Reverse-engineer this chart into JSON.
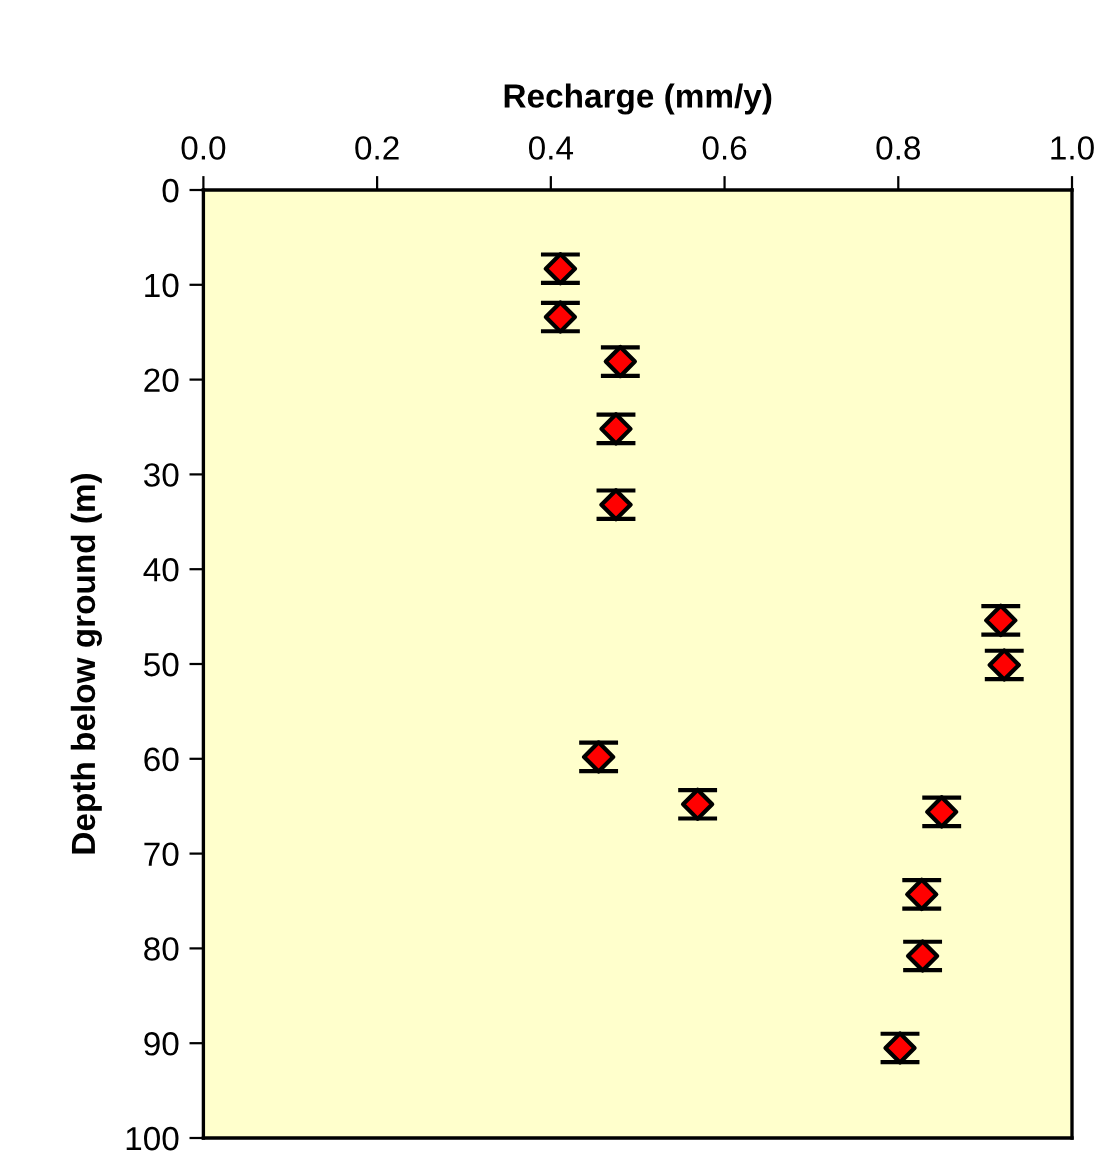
{
  "chart_data": {
    "type": "scatter",
    "xlabel": "Recharge (mm/y)",
    "ylabel": "Depth below ground (m)",
    "x": [
      0.411,
      0.411,
      0.48,
      0.475,
      0.475,
      0.918,
      0.922,
      0.455,
      0.569,
      0.85,
      0.827,
      0.828,
      0.802
    ],
    "series": [
      {
        "color": "#ff0000",
        "values": [
          8.3,
          13.4,
          18.1,
          25.2,
          33.2,
          45.4,
          50.1,
          59.8,
          64.8,
          65.6,
          74.3,
          80.8,
          90.5
        ],
        "errors": [
          1.5,
          1.5,
          1.5,
          1.5,
          1.5,
          1.5,
          1.5,
          1.5,
          1.5,
          1.5,
          1.5,
          1.5,
          1.5
        ]
      }
    ],
    "xlim": [
      0,
      1
    ],
    "xticks": [
      {
        "value": 0,
        "label": "0.0"
      },
      {
        "value": 0.2,
        "label": "0.2"
      },
      {
        "value": 0.4,
        "label": "0.4"
      },
      {
        "value": 0.6,
        "label": "0.6"
      },
      {
        "value": 0.8,
        "label": "0.8"
      },
      {
        "value": 1,
        "label": "1.0"
      }
    ],
    "ylim": [
      100,
      0
    ],
    "yticks": [
      0,
      10,
      20,
      30,
      40,
      50,
      60,
      70,
      80,
      90,
      100
    ],
    "marker": "diamond",
    "grid": false,
    "legend": false
  }
}
